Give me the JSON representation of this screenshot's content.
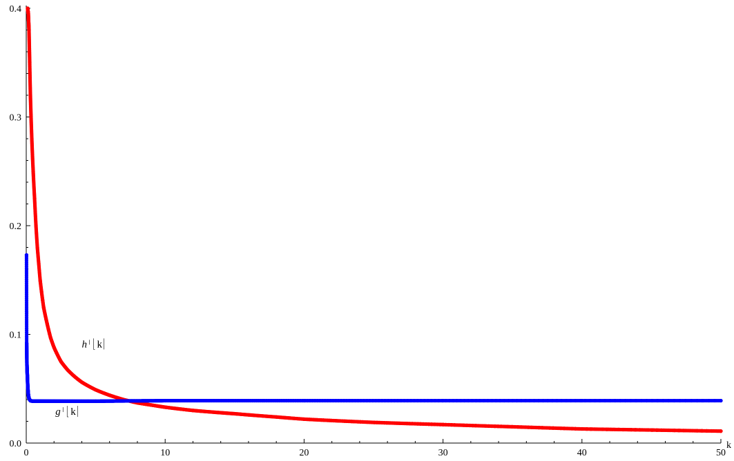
{
  "chart_data": {
    "type": "scatter",
    "title": "",
    "xlabel": "k",
    "ylabel": "",
    "xlim": [
      0,
      50
    ],
    "ylim": [
      0,
      0.4
    ],
    "x_ticks": [
      0,
      10,
      20,
      30,
      40,
      50
    ],
    "x_tick_labels": [
      "0",
      "10",
      "20",
      "30",
      "40",
      "50"
    ],
    "y_ticks": [
      0.0,
      0.1,
      0.2,
      0.3,
      0.4
    ],
    "y_tick_labels": [
      "0.0",
      "0.1",
      "0.2",
      "0.3",
      "0.4"
    ],
    "grid": false,
    "annotations": [
      {
        "prefix": "h",
        "suffix": "k",
        "x": 4.0,
        "y": 0.088
      },
      {
        "prefix": "g",
        "suffix": "k",
        "x": 2.1,
        "y": 0.026
      }
    ],
    "series": [
      {
        "color": "#ff0000",
        "x": [
          0.1,
          0.15,
          0.2,
          0.25,
          0.3,
          0.4,
          0.5,
          0.6,
          0.7,
          0.8,
          0.9,
          1.0,
          1.25,
          1.5,
          1.75,
          2.0,
          2.5,
          3.0,
          3.5,
          4.0,
          5.0,
          6.0,
          7.0,
          8.0,
          9.0,
          10.0,
          12.0,
          15.0,
          18.0,
          20.0,
          25.0,
          30.0,
          35.0,
          40.0,
          45.0,
          50.0
        ],
        "y": [
          0.4,
          0.395,
          0.38,
          0.35,
          0.32,
          0.28,
          0.25,
          0.225,
          0.2,
          0.18,
          0.165,
          0.15,
          0.125,
          0.11,
          0.097,
          0.088,
          0.075,
          0.067,
          0.061,
          0.056,
          0.049,
          0.044,
          0.04,
          0.037,
          0.035,
          0.033,
          0.03,
          0.027,
          0.024,
          0.022,
          0.019,
          0.017,
          0.015,
          0.013,
          0.012,
          0.011
        ]
      },
      {
        "color": "#0000ff",
        "x": [
          0.02,
          0.03,
          0.05,
          0.08,
          0.1,
          0.12,
          0.15,
          0.2,
          0.3,
          0.5,
          1.0,
          2.0,
          5.0,
          10.0,
          20.0,
          30.0,
          40.0,
          50.0
        ],
        "y": [
          0.173,
          0.092,
          0.072,
          0.062,
          0.055,
          0.05,
          0.045,
          0.041,
          0.039,
          0.0385,
          0.0385,
          0.0385,
          0.0385,
          0.039,
          0.039,
          0.039,
          0.039,
          0.039
        ]
      }
    ]
  }
}
